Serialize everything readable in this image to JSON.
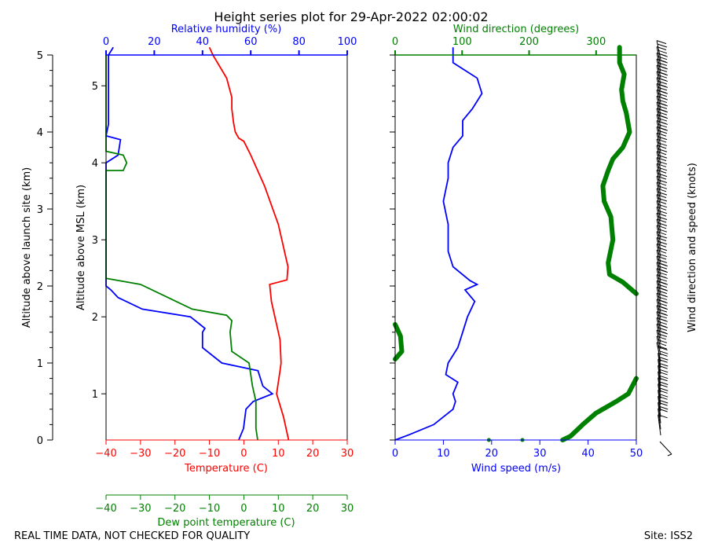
{
  "title": "Height series plot for 29-Apr-2022 02:00:02",
  "footer_left": "REAL TIME DATA, NOT CHECKED FOR QUALITY",
  "footer_right": "Site: ISS2",
  "colors": {
    "temperature": "#ff0000",
    "dewpoint": "#008000",
    "rh": "#0000ff",
    "wind_speed": "#0000ff",
    "wind_dir": "#008000",
    "barbs": "#000000",
    "text": "#000000"
  },
  "chart_data": [
    {
      "id": "thermo",
      "type": "line",
      "ylabel_left": "Altitude above launch site (km)",
      "ylabel_msl": "Altitude above MSL (km)",
      "xlabel_temp": "Temperature (C)",
      "xlabel_dew": "Dew point temperature (C)",
      "xlabel_rh": "Relative humidity (%)",
      "xlim_temp": [
        -40,
        30
      ],
      "xlim_rh": [
        0,
        100
      ],
      "ylim_launch_km": [
        0,
        5
      ],
      "temp_ticks": [
        "−40",
        "−30",
        "−20",
        "−10",
        "0",
        "10",
        "20",
        "30"
      ],
      "rh_ticks": [
        "0",
        "20",
        "40",
        "60",
        "80",
        "100"
      ],
      "launch_ticks": [
        "0",
        "1",
        "2",
        "3",
        "4",
        "5"
      ],
      "msl_ticks": [
        "1",
        "2",
        "3",
        "4",
        "5"
      ],
      "msl_offset_km": 0.4,
      "series": [
        {
          "name": "Temperature",
          "x_unit": "C",
          "points": [
            [
              13.0,
              0
            ],
            [
              11.5,
              0.3
            ],
            [
              9.5,
              0.6
            ],
            [
              10.5,
              0.9
            ],
            [
              10.8,
              1.0
            ],
            [
              10.5,
              1.3
            ],
            [
              8.0,
              1.8
            ],
            [
              7.5,
              2.02
            ],
            [
              12.5,
              2.08
            ],
            [
              12.8,
              2.25
            ],
            [
              10,
              2.8
            ],
            [
              6,
              3.3
            ],
            [
              2,
              3.7
            ],
            [
              0,
              3.88
            ],
            [
              -1.5,
              3.92
            ],
            [
              -2.5,
              4.0
            ],
            [
              -3,
              4.12
            ],
            [
              -3.5,
              4.3
            ],
            [
              -3.5,
              4.45
            ],
            [
              -5,
              4.7
            ],
            [
              -9,
              5.0
            ],
            [
              -10,
              5.1
            ]
          ]
        },
        {
          "name": "Dew point",
          "x_unit": "C",
          "points": [
            [
              4.0,
              0
            ],
            [
              3.5,
              0.15
            ],
            [
              3.5,
              0.5
            ],
            [
              2.5,
              0.7
            ],
            [
              2.0,
              0.85
            ],
            [
              1.5,
              1.0
            ],
            [
              -3.5,
              1.15
            ],
            [
              -4,
              1.4
            ],
            [
              -3.5,
              1.55
            ],
            [
              -5,
              1.62
            ],
            [
              -15,
              1.7
            ],
            [
              -22,
              1.85
            ],
            [
              -30,
              2.02
            ],
            [
              -40,
              2.1
            ],
            [
              -40,
              3.5
            ],
            [
              -35,
              3.5
            ],
            [
              -34,
              3.6
            ],
            [
              -35,
              3.7
            ],
            [
              -40,
              3.75
            ],
            [
              -40,
              5.0
            ]
          ]
        },
        {
          "name": "Relative humidity",
          "x_unit": "%",
          "points": [
            [
              55,
              0
            ],
            [
              57,
              0.15
            ],
            [
              58,
              0.4
            ],
            [
              61,
              0.5
            ],
            [
              69,
              0.6
            ],
            [
              65,
              0.7
            ],
            [
              63,
              0.9
            ],
            [
              48,
              1.0
            ],
            [
              40,
              1.2
            ],
            [
              40,
              1.4
            ],
            [
              41,
              1.45
            ],
            [
              35,
              1.6
            ],
            [
              15,
              1.7
            ],
            [
              5,
              1.85
            ],
            [
              2,
              1.95
            ],
            [
              0,
              2.0
            ],
            [
              0,
              3.6
            ],
            [
              5,
              3.7
            ],
            [
              6,
              3.9
            ],
            [
              0,
              3.95
            ],
            [
              1,
              4.1
            ],
            [
              1,
              4.6
            ],
            [
              1,
              5.0
            ],
            [
              3,
              5.1
            ]
          ]
        }
      ]
    },
    {
      "id": "wind",
      "type": "line",
      "xlabel_speed": "Wind speed (m/s)",
      "xlabel_dir": "Wind direction (degrees)",
      "ylabel_right": "Wind direction and speed (knots)",
      "xlim_speed": [
        0,
        50
      ],
      "xlim_dir": [
        0,
        360
      ],
      "speed_ticks": [
        "0",
        "10",
        "20",
        "30",
        "40",
        "50"
      ],
      "dir_ticks": [
        "0",
        "100",
        "200",
        "300"
      ],
      "series": [
        {
          "name": "Wind speed",
          "x_unit": "m/s",
          "points": [
            [
              0,
              0
            ],
            [
              3,
              0.07
            ],
            [
              8,
              0.2
            ],
            [
              12,
              0.4
            ],
            [
              12.5,
              0.5
            ],
            [
              12,
              0.6
            ],
            [
              13,
              0.75
            ],
            [
              10.5,
              0.85
            ],
            [
              11,
              1.0
            ],
            [
              13,
              1.2
            ],
            [
              14,
              1.4
            ],
            [
              15,
              1.6
            ],
            [
              16.5,
              1.8
            ],
            [
              14.5,
              1.95
            ],
            [
              17,
              2.02
            ],
            [
              15.5,
              2.07
            ],
            [
              12,
              2.25
            ],
            [
              11,
              2.45
            ],
            [
              11,
              2.8
            ],
            [
              10,
              3.1
            ],
            [
              11,
              3.4
            ],
            [
              11,
              3.6
            ],
            [
              12,
              3.8
            ],
            [
              14,
              3.95
            ],
            [
              14,
              4.15
            ],
            [
              16,
              4.3
            ],
            [
              18,
              4.5
            ],
            [
              17,
              4.7
            ],
            [
              12,
              4.9
            ],
            [
              12,
              5.1
            ]
          ]
        },
        {
          "name": "Wind direction",
          "x_unit": "degrees",
          "segments": [
            [
              [
                250,
                0
              ],
              [
                262,
                0.05
              ],
              [
                280,
                0.2
              ],
              [
                300,
                0.35
              ],
              [
                330,
                0.5
              ],
              [
                348,
                0.6
              ],
              [
                360,
                0.8
              ]
            ],
            [
              [
                0,
                1.05
              ],
              [
                10,
                1.15
              ],
              [
                8,
                1.35
              ],
              [
                0,
                1.5
              ]
            ],
            [
              [
                360,
                1.9
              ],
              [
                340,
                2.05
              ],
              [
                320,
                2.15
              ],
              [
                318,
                2.3
              ],
              [
                325,
                2.6
              ],
              [
                322,
                2.9
              ],
              [
                312,
                3.1
              ],
              [
                310,
                3.3
              ],
              [
                318,
                3.5
              ],
              [
                325,
                3.65
              ],
              [
                340,
                3.8
              ],
              [
                350,
                4.0
              ],
              [
                345,
                4.25
              ],
              [
                340,
                4.4
              ],
              [
                338,
                4.55
              ],
              [
                342,
                4.75
              ],
              [
                335,
                4.9
              ],
              [
                335,
                5.1
              ]
            ]
          ],
          "isolated_points": [
            [
              140,
              0
            ],
            [
              190,
              0
            ],
            [
              250,
              0
            ]
          ]
        }
      ]
    }
  ]
}
